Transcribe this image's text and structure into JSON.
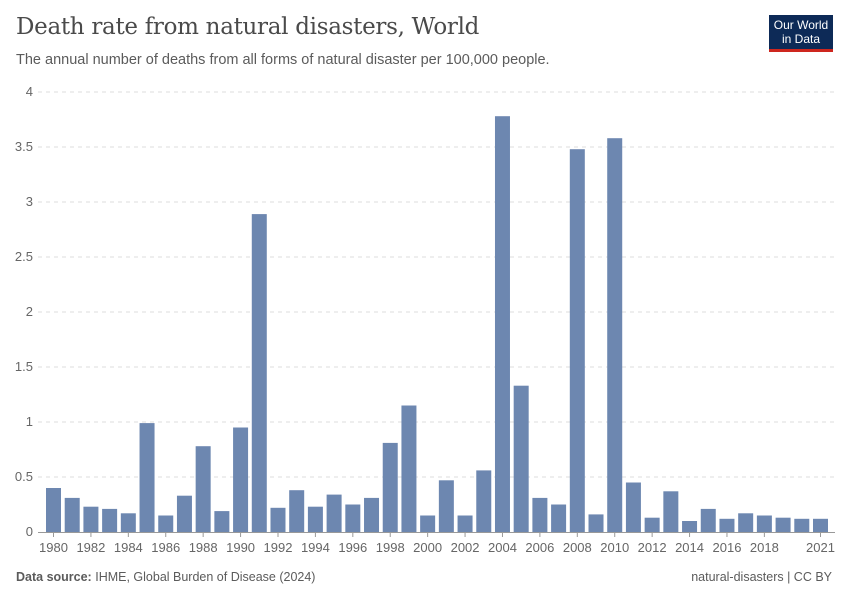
{
  "header": {
    "title": "Death rate from natural disasters, World",
    "subtitle": "The annual number of deaths from all forms of natural disaster per 100,000 people.",
    "logo": "Our World in Data"
  },
  "footer": {
    "source_label": "Data source:",
    "source": "IHME, Global Burden of Disease (2024)",
    "right": "natural-disasters | CC BY"
  },
  "chart_data": {
    "type": "bar",
    "title": "Death rate from natural disasters, World",
    "ylim": [
      0,
      4
    ],
    "yticks": [
      "0",
      "0.5",
      "1",
      "1.5",
      "2",
      "2.5",
      "3",
      "3.5",
      "4"
    ],
    "xticks": [
      "1980",
      "1982",
      "1984",
      "1986",
      "1988",
      "1990",
      "1992",
      "1994",
      "1996",
      "1998",
      "2000",
      "2002",
      "2004",
      "2006",
      "2008",
      "2010",
      "2012",
      "2014",
      "2016",
      "2018",
      "2021"
    ],
    "grid": "horizontal dashed",
    "color": "#6d87b0",
    "categories": [
      1980,
      1981,
      1982,
      1983,
      1984,
      1985,
      1986,
      1987,
      1988,
      1989,
      1990,
      1991,
      1992,
      1993,
      1994,
      1995,
      1996,
      1997,
      1998,
      1999,
      2000,
      2001,
      2002,
      2003,
      2004,
      2005,
      2006,
      2007,
      2008,
      2009,
      2010,
      2011,
      2012,
      2013,
      2014,
      2015,
      2016,
      2017,
      2018,
      2019,
      2020,
      2021
    ],
    "values": [
      0.4,
      0.31,
      0.23,
      0.21,
      0.17,
      0.99,
      0.15,
      0.33,
      0.78,
      0.19,
      0.95,
      2.89,
      0.22,
      0.38,
      0.23,
      0.34,
      0.25,
      0.31,
      0.81,
      1.15,
      0.15,
      0.47,
      0.15,
      0.56,
      3.78,
      1.33,
      0.31,
      0.25,
      3.48,
      0.16,
      3.58,
      0.45,
      0.13,
      0.37,
      0.1,
      0.21,
      0.12,
      0.17,
      0.15,
      0.13,
      0.12,
      0.12
    ]
  }
}
